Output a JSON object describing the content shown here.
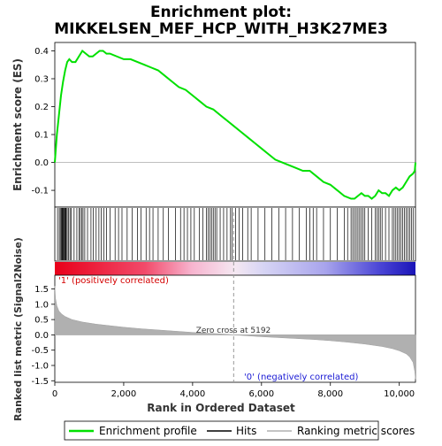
{
  "chart_data": {
    "type": "line",
    "title_line1": "Enrichment plot:",
    "title_line2": "MIKKELSEN_MEF_HCP_WITH_H3K27ME3",
    "top_panel": {
      "ylabel": "Enrichment score (ES)",
      "ylim": [
        -0.16,
        0.43
      ],
      "yticks": [
        -0.1,
        0.0,
        0.1,
        0.2,
        0.3,
        0.4
      ],
      "ytick_labels": [
        "-0.1",
        "0.0",
        "0.1",
        "0.2",
        "0.3",
        "0.4"
      ],
      "series": [
        {
          "name": "Enrichment profile",
          "color": "#00e000",
          "x": [
            0,
            60,
            120,
            180,
            240,
            300,
            360,
            420,
            500,
            600,
            700,
            800,
            900,
            1000,
            1100,
            1200,
            1300,
            1400,
            1500,
            1600,
            1800,
            2000,
            2200,
            2400,
            2600,
            2800,
            3000,
            3200,
            3400,
            3600,
            3800,
            4000,
            4200,
            4400,
            4600,
            4800,
            5000,
            5200,
            5400,
            5600,
            5800,
            6000,
            6200,
            6400,
            6600,
            6800,
            7000,
            7200,
            7400,
            7600,
            7800,
            8000,
            8200,
            8400,
            8600,
            8700,
            8800,
            8900,
            9000,
            9100,
            9200,
            9300,
            9400,
            9500,
            9600,
            9700,
            9800,
            9900,
            10000,
            10100,
            10200,
            10300,
            10400,
            10450,
            10470
          ],
          "y": [
            0.0,
            0.1,
            0.17,
            0.24,
            0.29,
            0.33,
            0.36,
            0.37,
            0.36,
            0.36,
            0.38,
            0.4,
            0.39,
            0.38,
            0.38,
            0.39,
            0.4,
            0.4,
            0.39,
            0.39,
            0.38,
            0.37,
            0.37,
            0.36,
            0.35,
            0.34,
            0.33,
            0.31,
            0.29,
            0.27,
            0.26,
            0.24,
            0.22,
            0.2,
            0.19,
            0.17,
            0.15,
            0.13,
            0.11,
            0.09,
            0.07,
            0.05,
            0.03,
            0.01,
            -0.0,
            -0.01,
            -0.02,
            -0.03,
            -0.03,
            -0.05,
            -0.07,
            -0.08,
            -0.1,
            -0.12,
            -0.13,
            -0.13,
            -0.12,
            -0.11,
            -0.12,
            -0.12,
            -0.13,
            -0.12,
            -0.1,
            -0.11,
            -0.11,
            -0.12,
            -0.1,
            -0.09,
            -0.1,
            -0.09,
            -0.07,
            -0.05,
            -0.04,
            -0.03,
            0.0
          ]
        }
      ]
    },
    "hits_panel": {
      "name": "Hits",
      "hit_positions": [
        80,
        130,
        160,
        190,
        210,
        230,
        250,
        270,
        290,
        310,
        330,
        360,
        400,
        440,
        480,
        560,
        640,
        700,
        740,
        780,
        820,
        870,
        950,
        1050,
        1120,
        1200,
        1280,
        1350,
        1420,
        1500,
        1600,
        1750,
        1850,
        1950,
        2100,
        2250,
        2400,
        2500,
        2650,
        2750,
        2850,
        3000,
        3150,
        3300,
        3500,
        3650,
        3750,
        3850,
        3950,
        4050,
        4200,
        4300,
        4400,
        4450,
        4500,
        4550,
        4600,
        4650,
        4700,
        4800,
        4900,
        5000,
        5100,
        5150,
        5250,
        5350,
        5450,
        5600,
        5700,
        5900,
        6100,
        6300,
        6500,
        6700,
        6900,
        7100,
        7300,
        7400,
        7500,
        7600,
        7800,
        8000,
        8200,
        8400,
        8500,
        8600,
        8650,
        8700,
        8750,
        8800,
        8850,
        8900,
        8950,
        9000,
        9100,
        9200,
        9300,
        9350,
        9400,
        9450,
        9500,
        9600,
        9700,
        9800,
        9850,
        9900,
        9950,
        10000,
        10050,
        10100,
        10150,
        10200,
        10250,
        10300,
        10350,
        10400
      ]
    },
    "metric_panel": {
      "name": "Ranking metric scores",
      "ylabel": "Ranked list metric (Signal2Noise)",
      "ylim": [
        -1.55,
        1.95
      ],
      "yticks": [
        -1.5,
        -1.0,
        -0.5,
        0.0,
        0.5,
        1.0,
        1.5
      ],
      "ytick_labels": [
        "-1.5",
        "-1.0",
        "-0.5",
        "0.0",
        "0.5",
        "1.0",
        "1.5"
      ],
      "x": [
        0,
        20,
        60,
        120,
        200,
        300,
        500,
        800,
        1200,
        1600,
        2000,
        2500,
        3000,
        3500,
        4000,
        4500,
        5000,
        5192,
        5600,
        6000,
        6500,
        7000,
        7500,
        8000,
        8500,
        9000,
        9500,
        9800,
        10000,
        10200,
        10300,
        10400,
        10450,
        10470
      ],
      "y": [
        1.6,
        1.2,
        0.95,
        0.78,
        0.68,
        0.6,
        0.5,
        0.42,
        0.35,
        0.3,
        0.25,
        0.2,
        0.16,
        0.12,
        0.08,
        0.05,
        0.02,
        0.0,
        -0.03,
        -0.06,
        -0.09,
        -0.12,
        -0.15,
        -0.19,
        -0.24,
        -0.3,
        -0.38,
        -0.45,
        -0.52,
        -0.62,
        -0.72,
        -0.9,
        -1.2,
        -1.45
      ]
    },
    "xlabel": "Rank in Ordered Dataset",
    "xlim": [
      0,
      10470
    ],
    "xticks": [
      0,
      2000,
      4000,
      6000,
      8000,
      10000
    ],
    "xtick_labels": [
      "0",
      "2,000",
      "4,000",
      "6,000",
      "8,000",
      "10,000"
    ],
    "zero_cross": 5192,
    "zero_cross_label": "Zero cross at 5192",
    "positive_label": "'1' (positively correlated)",
    "negative_label": "'0' (negatively correlated)",
    "legend": {
      "placement": "bottom",
      "entries": [
        "Enrichment profile",
        "Hits",
        "Ranking metric scores"
      ]
    },
    "colors": {
      "profile": "#00e000",
      "hits": "#000000",
      "metric": "#b0b0b0",
      "positive": "#e8001a",
      "negative": "#1a1acc"
    }
  }
}
